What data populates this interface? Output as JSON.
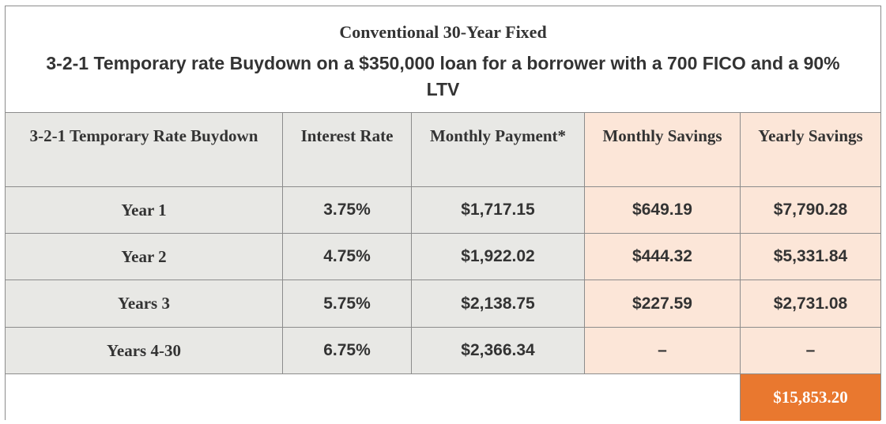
{
  "header": {
    "subtitle": "Conventional 30-Year Fixed",
    "title": "3-2-1 Temporary rate Buydown on a $350,000 loan for a borrower with a 700 FICO and a 90% LTV"
  },
  "table": {
    "columns": {
      "c0": "3-2-1 Temporary Rate Buydown",
      "c1": "Interest Rate",
      "c2": "Monthly Payment*",
      "c3": "Monthly Savings",
      "c4": "Yearly Savings"
    },
    "rows": [
      {
        "label": "Year 1",
        "rate": "3.75%",
        "payment": "$1,717.15",
        "monthly": "$649.19",
        "yearly": "$7,790.28"
      },
      {
        "label": "Year 2",
        "rate": "4.75%",
        "payment": "$1,922.02",
        "monthly": "$444.32",
        "yearly": "$5,331.84"
      },
      {
        "label": "Years 3",
        "rate": "5.75%",
        "payment": "$2,138.75",
        "monthly": "$227.59",
        "yearly": "$2,731.08"
      },
      {
        "label": "Years 4-30",
        "rate": "6.75%",
        "payment": "$2,366.34",
        "monthly": "–",
        "yearly": "–"
      }
    ],
    "total": "$15,853.20"
  },
  "colors": {
    "gray_cell": "#e8e8e5",
    "savings_cell": "#fce6d8",
    "total_cell": "#e9782f",
    "border": "#8c8c8c",
    "text": "#333333"
  }
}
